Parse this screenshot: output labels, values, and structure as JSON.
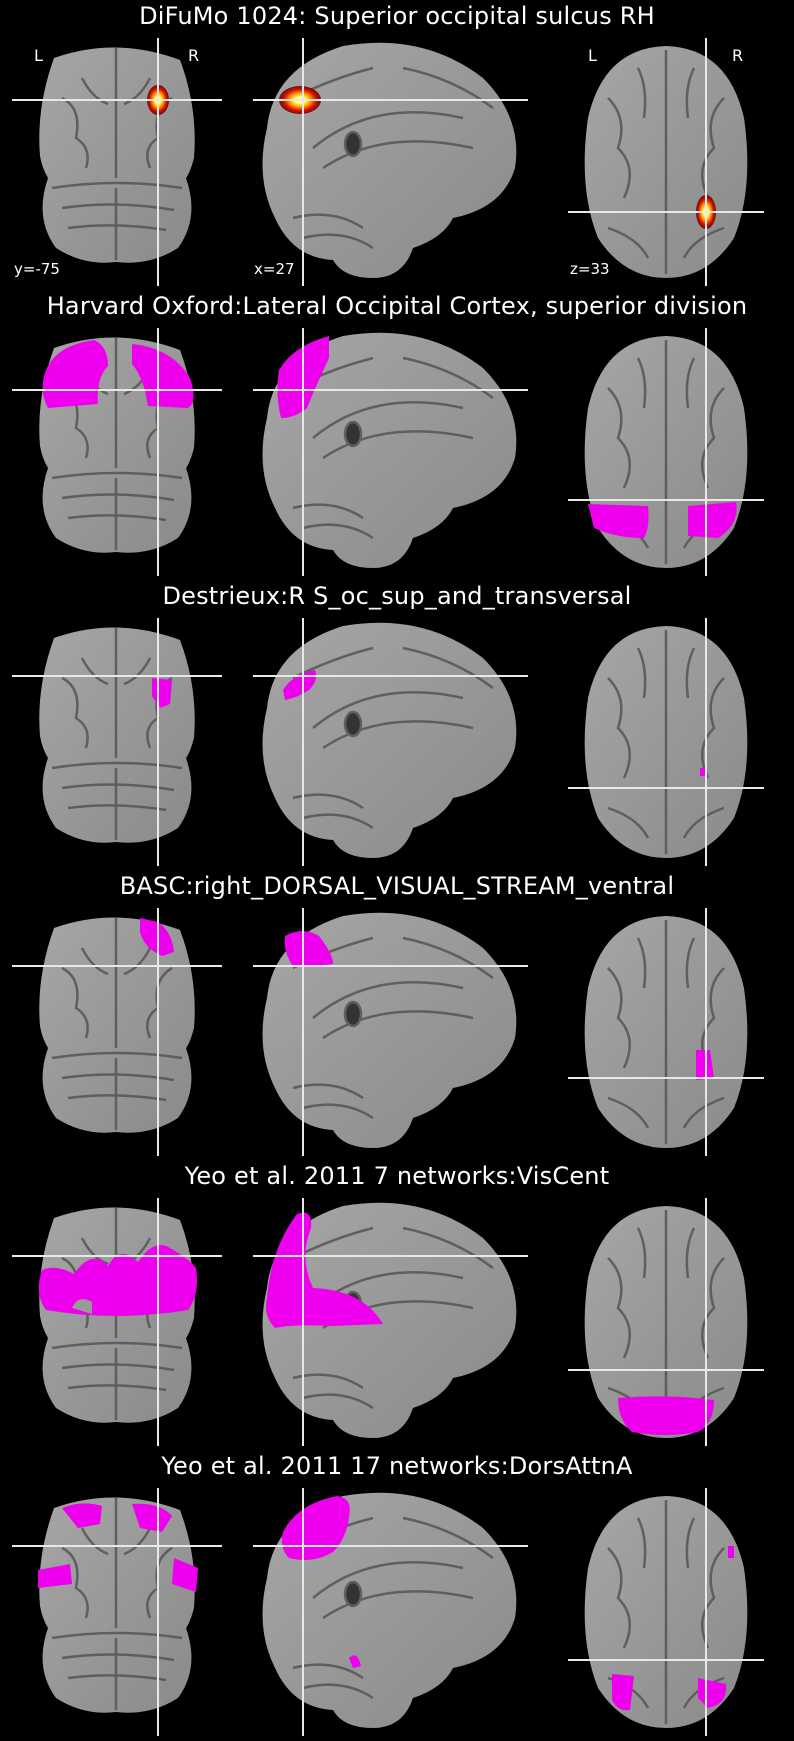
{
  "colors": {
    "background": "#000000",
    "overlay_atlas": "#ee00ee",
    "overlay_difumo": "hot colormap (red-orange-yellow-white)",
    "crosshair": "#e8e8e8"
  },
  "orientation": {
    "left": "L",
    "right": "R"
  },
  "coords": {
    "coronal": "y=-75",
    "sagittal": "x=27",
    "axial": "z=33"
  },
  "panels": [
    {
      "title": "DiFuMo 1024: Superior occipital sulcus RH",
      "overlay": "hot",
      "show_labels": true
    },
    {
      "title": "Harvard Oxford:Lateral Occipital Cortex, superior division",
      "overlay": "magenta"
    },
    {
      "title": "Destrieux:R S_oc_sup_and_transversal",
      "overlay": "magenta"
    },
    {
      "title": "BASC:right_DORSAL_VISUAL_STREAM_ventral",
      "overlay": "magenta"
    },
    {
      "title": "Yeo et al. 2011 7 networks:VisCent",
      "overlay": "magenta"
    },
    {
      "title": "Yeo et al. 2011 17 networks:DorsAttnA",
      "overlay": "magenta"
    }
  ]
}
